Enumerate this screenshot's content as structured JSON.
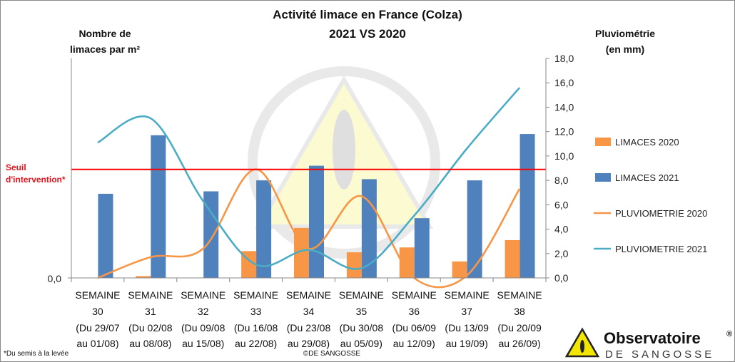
{
  "chart_data": {
    "type": "bar",
    "title": "Activité limace en France (Colza)",
    "subtitle": "2021 VS 2020",
    "ylabel_left": [
      "Nombre de",
      "limaces par m²"
    ],
    "ylabel_right": [
      "Pluviométrie",
      "(en mm)"
    ],
    "y_left_tick": "0,0",
    "y_right_ticks": [
      "0,0",
      "2,0",
      "4,0",
      "6,0",
      "8,0",
      "10,0",
      "12,0",
      "14,0",
      "16,0",
      "18,0"
    ],
    "ylim_right": [
      0,
      18
    ],
    "categories": [
      [
        "SEMAINE",
        "30",
        "(Du 29/07",
        "au 01/08)"
      ],
      [
        "SEMAINE",
        "31",
        "(Du 02/08",
        "au 08/08)"
      ],
      [
        "SEMAINE",
        "32",
        "(Du 09/08",
        "au 15/08)"
      ],
      [
        "SEMAINE",
        "33",
        "(Du 16/08",
        "au 22/08)"
      ],
      [
        "SEMAINE",
        "34",
        "(Du 23/08",
        "au 29/08)"
      ],
      [
        "SEMAINE",
        "35",
        "(Du 30/08",
        "au 05/09)"
      ],
      [
        "SEMAINE",
        "36",
        "(Du 06/09",
        "au 12/09)"
      ],
      [
        "SEMAINE",
        "37",
        "(Du 13/09",
        "au 19/09)"
      ],
      [
        "SEMAINE",
        "38",
        "(Du 20/09",
        "au 26/09)"
      ]
    ],
    "series": [
      {
        "name": "LIMACES 2020",
        "kind": "bar",
        "axis": "right_scale",
        "color": "#f79646",
        "values": [
          0,
          0.15,
          0,
          2.2,
          4.1,
          2.1,
          2.5,
          1.35,
          3.1
        ]
      },
      {
        "name": "LIMACES 2021",
        "kind": "bar",
        "axis": "right_scale",
        "color": "#4f81bd",
        "values": [
          6.9,
          11.7,
          7.1,
          8.0,
          9.2,
          8.1,
          4.9,
          8.0,
          11.8
        ]
      },
      {
        "name": "PLUVIOMETRIE 2020",
        "kind": "line",
        "axis": "right",
        "color": "#f79646",
        "values": [
          0,
          1.7,
          2.4,
          8.9,
          2.4,
          6.7,
          0,
          0.2,
          7.3
        ]
      },
      {
        "name": "PLUVIOMETRIE 2021",
        "kind": "line",
        "axis": "right",
        "color": "#4bacc6",
        "values": [
          11.1,
          13.1,
          6.3,
          1.1,
          2.3,
          0.8,
          5.1,
          10.6,
          15.6
        ]
      }
    ],
    "threshold": {
      "label": [
        "Seuil",
        "d'intervention*"
      ],
      "value_right_scale": 8.9,
      "color": "#ff0000"
    },
    "legend_position": "right",
    "grid": false
  },
  "footnote": "*Du semis à la levée",
  "copyright": "©DE SANGOSSE",
  "brand": {
    "name": "Observatoire",
    "reg": "®",
    "sub": "DE SANGOSSE"
  }
}
